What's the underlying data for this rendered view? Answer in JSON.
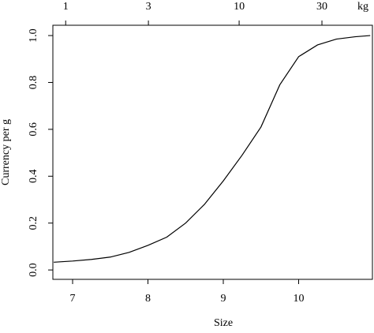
{
  "chart_data": {
    "type": "line",
    "xlabel": "Size",
    "ylabel": "Currency per g",
    "top_axis_unit": "kg",
    "x": [
      6.75,
      7,
      7.25,
      7.5,
      7.75,
      8,
      8.25,
      8.5,
      8.75,
      9,
      9.25,
      9.5,
      9.75,
      10,
      10.25,
      10.5,
      10.75,
      10.95
    ],
    "values": [
      0.033,
      0.038,
      0.045,
      0.055,
      0.075,
      0.105,
      0.14,
      0.2,
      0.28,
      0.38,
      0.49,
      0.61,
      0.79,
      0.91,
      0.96,
      0.985,
      0.995,
      1.0
    ],
    "color": "#000000",
    "xlim": [
      6.738,
      10.979
    ],
    "xticks": [
      7,
      8,
      9,
      10
    ],
    "ylim": [
      -0.04,
      1.044
    ],
    "yticks": [
      {
        "value": 0,
        "label": "0.0"
      },
      0.2,
      0.4,
      0.6,
      0.8,
      {
        "value": 1,
        "label": "1.0"
      }
    ],
    "top_xticks": [
      {
        "value": 6.908,
        "label": "1"
      },
      {
        "value": 8.006,
        "label": "3"
      },
      {
        "value": 9.21,
        "label": "10"
      },
      {
        "value": 10.309,
        "label": "30"
      }
    ],
    "grid": false
  }
}
